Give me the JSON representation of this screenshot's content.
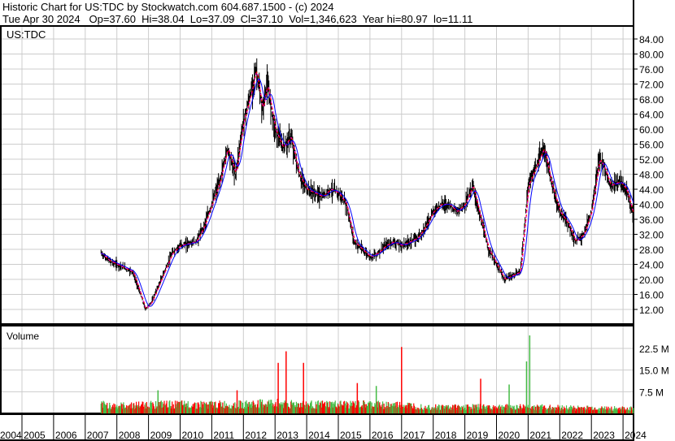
{
  "header": {
    "title": "Historic Chart for US:TDC by Stockwatch.com 604.687.1500 - (c) 2024",
    "quote": "Tue Apr 30 2024   Op=37.60  Hi=38.04  Lo=37.09  Cl=37.10  Vol=1,346,623  Year hi=80.97  lo=11.11"
  },
  "chart_data": [
    {
      "type": "line",
      "title": "US:TDC",
      "ylim": [
        10,
        86
      ],
      "yticks": [
        "84.00",
        "80.00",
        "76.00",
        "72.00",
        "68.00",
        "64.00",
        "60.00",
        "56.00",
        "52.00",
        "48.00",
        "44.00",
        "40.00",
        "36.00",
        "32.00",
        "28.00",
        "24.00",
        "20.00",
        "16.00",
        "12.00"
      ],
      "x": [
        2007.5,
        2007.75,
        2008.0,
        2008.5,
        2008.75,
        2008.9,
        2009.1,
        2009.5,
        2009.75,
        2010.0,
        2010.5,
        2010.75,
        2011.0,
        2011.25,
        2011.5,
        2011.75,
        2012.0,
        2012.25,
        2012.4,
        2012.6,
        2012.75,
        2013.0,
        2013.25,
        2013.5,
        2013.75,
        2014.0,
        2014.25,
        2014.5,
        2014.75,
        2015.0,
        2015.25,
        2015.5,
        2015.75,
        2016.0,
        2016.25,
        2016.5,
        2016.75,
        2017.0,
        2017.25,
        2017.5,
        2017.75,
        2018.0,
        2018.25,
        2018.5,
        2018.75,
        2019.0,
        2019.25,
        2019.5,
        2019.75,
        2020.0,
        2020.25,
        2020.5,
        2020.75,
        2021.0,
        2021.25,
        2021.5,
        2021.75,
        2022.0,
        2022.25,
        2022.5,
        2022.75,
        2023.0,
        2023.25,
        2023.4,
        2023.6,
        2023.9,
        2024.1,
        2024.33
      ],
      "close": [
        27,
        25,
        24,
        22,
        16,
        12,
        14,
        22,
        27,
        29,
        30,
        34,
        40,
        46,
        55,
        48,
        62,
        70,
        76,
        65,
        72,
        60,
        55,
        58,
        48,
        44,
        43,
        42,
        44,
        43,
        40,
        30,
        28,
        26,
        27,
        29,
        30,
        29,
        30,
        31,
        34,
        38,
        40,
        40,
        38,
        40,
        45,
        36,
        28,
        24,
        20,
        21,
        22,
        45,
        50,
        55,
        45,
        38,
        35,
        30,
        32,
        38,
        52,
        50,
        45,
        46,
        44,
        37
      ],
      "colors": {
        "price": "#000000",
        "ma_short": "#ff0000",
        "ma_short_alt": "#ff00ff",
        "ma_long": "#0000ff"
      }
    },
    {
      "type": "bar",
      "title": "Volume",
      "yticks": [
        "22.5 M",
        "15.0 M",
        "7.5 M"
      ],
      "ylim": [
        0,
        30
      ],
      "baseline_years": [
        2007.5,
        2008,
        2009,
        2010,
        2011,
        2012,
        2013,
        2014,
        2015,
        2016,
        2017,
        2018,
        2019,
        2020,
        2021,
        2022,
        2023,
        2024.33
      ],
      "baseline_volume_m": [
        3,
        2.5,
        3,
        3,
        3,
        3,
        3.5,
        3,
        3,
        3,
        2.8,
        2.2,
        2.2,
        2.2,
        2.2,
        2,
        1.8,
        1.6
      ],
      "spikes": [
        {
          "x": 2013.1,
          "v": 17.5,
          "up": false
        },
        {
          "x": 2013.35,
          "v": 21.5,
          "up": false
        },
        {
          "x": 2013.9,
          "v": 17.5,
          "up": false
        },
        {
          "x": 2015.6,
          "v": 10.5,
          "up": false
        },
        {
          "x": 2017.0,
          "v": 23,
          "up": false
        },
        {
          "x": 2019.5,
          "v": 12,
          "up": false
        },
        {
          "x": 2020.4,
          "v": 10,
          "up": true
        },
        {
          "x": 2020.95,
          "v": 18,
          "up": true
        },
        {
          "x": 2021.05,
          "v": 27,
          "up": true
        },
        {
          "x": 2009.3,
          "v": 8,
          "up": true
        },
        {
          "x": 2011.8,
          "v": 8,
          "up": false
        },
        {
          "x": 2016.2,
          "v": 9.5,
          "up": true
        }
      ],
      "colors": {
        "up": "#44bb44",
        "down": "#ff0000"
      }
    }
  ],
  "xaxis": {
    "years": [
      "2004",
      "2005",
      "2006",
      "2007",
      "2008",
      "2009",
      "2010",
      "2011",
      "2012",
      "2013",
      "2014",
      "2015",
      "2016",
      "2017",
      "2018",
      "2019",
      "2020",
      "2021",
      "2022",
      "2023",
      "2024"
    ]
  }
}
